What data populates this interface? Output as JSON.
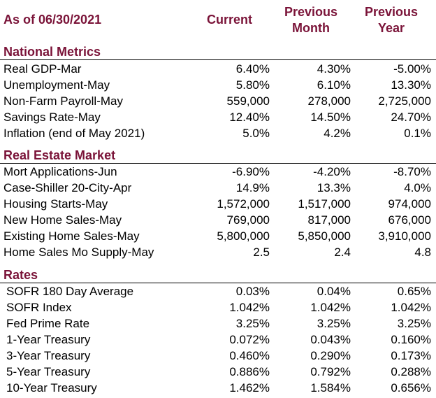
{
  "header": {
    "as_of": "As of 06/30/2021",
    "current": "Current",
    "previous_month": [
      "Previous",
      "Month"
    ],
    "previous_year": [
      "Previous",
      "Year"
    ]
  },
  "colors": {
    "heading": "#7a1338"
  },
  "sections": [
    {
      "title": "National Metrics",
      "rows": [
        {
          "label": "Real GDP-Mar",
          "current": "6.40%",
          "prev_month": "4.30%",
          "prev_year": "-5.00%"
        },
        {
          "label": "Unemployment-May",
          "current": "5.80%",
          "prev_month": "6.10%",
          "prev_year": "13.30%"
        },
        {
          "label": "Non-Farm Payroll-May",
          "current": "559,000",
          "prev_month": "278,000",
          "prev_year": "2,725,000"
        },
        {
          "label": "Savings Rate-May",
          "current": "12.40%",
          "prev_month": "14.50%",
          "prev_year": "24.70%"
        },
        {
          "label": "Inflation (end of May 2021)",
          "current": "5.0%",
          "prev_month": "4.2%",
          "prev_year": "0.1%"
        }
      ]
    },
    {
      "title": "Real Estate Market",
      "rows": [
        {
          "label": "Mort Applications-Jun",
          "current": "-6.90%",
          "prev_month": "-4.20%",
          "prev_year": "-8.70%"
        },
        {
          "label": "Case-Shiller 20-City-Apr",
          "current": "14.9%",
          "prev_month": "13.3%",
          "prev_year": "4.0%"
        },
        {
          "label": "Housing Starts-May",
          "current": "1,572,000",
          "prev_month": "1,517,000",
          "prev_year": "974,000"
        },
        {
          "label": "New Home Sales-May",
          "current": "769,000",
          "prev_month": "817,000",
          "prev_year": "676,000"
        },
        {
          "label": "Existing Home Sales-May",
          "current": "5,800,000",
          "prev_month": "5,850,000",
          "prev_year": "3,910,000"
        },
        {
          "label": "Home Sales Mo Supply-May",
          "current": "2.5",
          "prev_month": "2.4",
          "prev_year": "4.8"
        }
      ]
    },
    {
      "title": "Rates",
      "rows": [
        {
          "label": "SOFR 180 Day Average",
          "current": "0.03%",
          "prev_month": "0.04%",
          "prev_year": "0.65%"
        },
        {
          "label": "SOFR Index",
          "current": "1.042%",
          "prev_month": "1.042%",
          "prev_year": "1.042%"
        },
        {
          "label": "Fed Prime Rate",
          "current": "3.25%",
          "prev_month": "3.25%",
          "prev_year": "3.25%"
        },
        {
          "label": "1-Year Treasury",
          "current": "0.072%",
          "prev_month": "0.043%",
          "prev_year": "0.160%"
        },
        {
          "label": "3-Year Treasury",
          "current": "0.460%",
          "prev_month": "0.290%",
          "prev_year": "0.173%"
        },
        {
          "label": "5-Year Treasury",
          "current": "0.886%",
          "prev_month": "0.792%",
          "prev_year": "0.288%"
        },
        {
          "label": "10-Year Treasury",
          "current": "1.462%",
          "prev_month": "1.584%",
          "prev_year": "0.656%"
        }
      ]
    }
  ]
}
